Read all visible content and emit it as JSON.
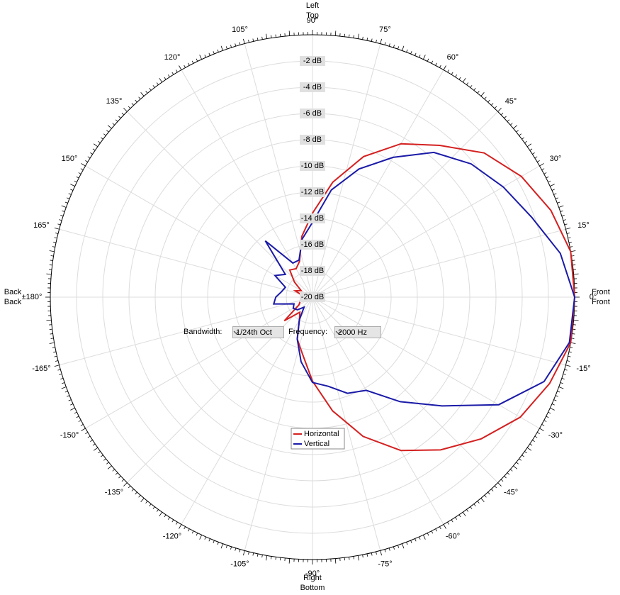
{
  "chart_data": {
    "type": "polar",
    "angles": [
      -170,
      -160,
      -150,
      -140,
      -130,
      -120,
      -110,
      -100,
      -90,
      -80,
      -70,
      -60,
      -50,
      -40,
      -30,
      -20,
      -10,
      0,
      10,
      20,
      30,
      40,
      50,
      60,
      70,
      80,
      90,
      100,
      110,
      120,
      130,
      140,
      150,
      160,
      170,
      180
    ],
    "rlim": [
      -20,
      0
    ],
    "rticks": [
      {
        "value": -2,
        "label": "-2 dB"
      },
      {
        "value": -4,
        "label": "-4 dB"
      },
      {
        "value": -6,
        "label": "-6 dB"
      },
      {
        "value": -8,
        "label": "-8 dB"
      },
      {
        "value": -10,
        "label": "-10 dB"
      },
      {
        "value": -12,
        "label": "-12 dB"
      },
      {
        "value": -14,
        "label": "-14 dB"
      },
      {
        "value": -16,
        "label": "-16 dB"
      },
      {
        "value": -18,
        "label": "-18 dB"
      },
      {
        "value": -20,
        "label": "-20 dB"
      }
    ],
    "angle_ticks": [
      {
        "value": -165,
        "label": "-165°"
      },
      {
        "value": -150,
        "label": "-150°"
      },
      {
        "value": -135,
        "label": "-135°"
      },
      {
        "value": -120,
        "label": "-120°"
      },
      {
        "value": -105,
        "label": "-105°"
      },
      {
        "value": -90,
        "label": "-90°"
      },
      {
        "value": -75,
        "label": "-75°"
      },
      {
        "value": -60,
        "label": "-60°"
      },
      {
        "value": -45,
        "label": "-45°"
      },
      {
        "value": -30,
        "label": "-30°"
      },
      {
        "value": -15,
        "label": "-15°"
      },
      {
        "value": 0,
        "label": "0°"
      },
      {
        "value": 15,
        "label": "15°"
      },
      {
        "value": 30,
        "label": "30°"
      },
      {
        "value": 45,
        "label": "45°"
      },
      {
        "value": 60,
        "label": "60°"
      },
      {
        "value": 75,
        "label": "75°"
      },
      {
        "value": 90,
        "label": "90°"
      },
      {
        "value": 105,
        "label": "105°"
      },
      {
        "value": 120,
        "label": "120°"
      },
      {
        "value": 135,
        "label": "135°"
      },
      {
        "value": 150,
        "label": "150°"
      },
      {
        "value": 165,
        "label": "165°"
      },
      {
        "value": 180,
        "label": "±180°"
      }
    ],
    "series": [
      {
        "name": "Horizontal",
        "color": "#d42020",
        "values": [
          -19.2,
          -19,
          -18.8,
          -17.2,
          -18.5,
          -18,
          -16.6,
          -15.6,
          -13.6,
          -11.2,
          -8.7,
          -6.5,
          -4.8,
          -3.2,
          -1.7,
          -0.75,
          0,
          0,
          0,
          -0.65,
          -1.6,
          -2.9,
          -4.9,
          -6.5,
          -8.6,
          -11.1,
          -13.6,
          -15.3,
          -17.1,
          -17.5,
          -17.3,
          -18.2,
          -19,
          -18.6,
          -19.2,
          -19.5
        ]
      },
      {
        "name": "Vertical",
        "color": "#1a1aa8",
        "values": [
          -17,
          -18.5,
          -18.3,
          -18.5,
          -19,
          -18,
          -16.6,
          -15,
          -13.5,
          -13.1,
          -12.2,
          -11.8,
          -9.6,
          -7.1,
          -3.6,
          -1.2,
          -0.1,
          0,
          -0.8,
          -2.2,
          -3.2,
          -4.2,
          -5.6,
          -7.7,
          -9.6,
          -11.7,
          -14.3,
          -15.5,
          -17,
          -17,
          -14.4,
          -17.3,
          -16.7,
          -17.8,
          -17.6,
          -17.2
        ]
      }
    ],
    "direction_labels": {
      "top": [
        "Left",
        "Top"
      ],
      "bottom": [
        "Right",
        "Bottom"
      ],
      "left": [
        "Back",
        "Back"
      ],
      "right": [
        "Front",
        "Front"
      ]
    }
  },
  "controls": {
    "bandwidth_label": "Bandwidth:",
    "bandwidth_value": "1/24th Oct",
    "frequency_label": "Frequency:",
    "frequency_value": "2000 Hz"
  }
}
